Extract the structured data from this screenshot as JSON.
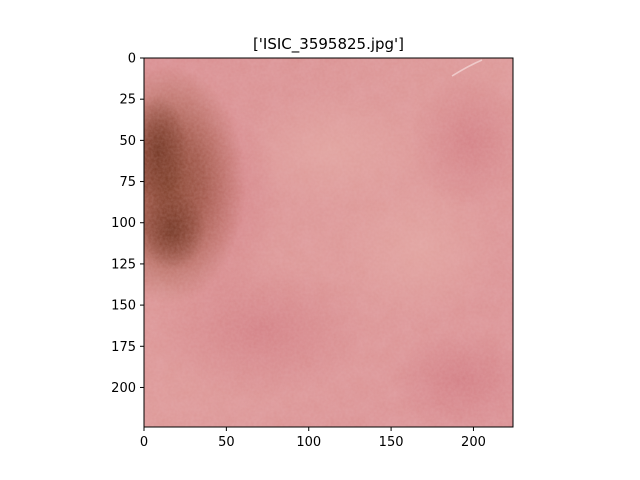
{
  "figure": {
    "title": "['ISIC_3595825.jpg']"
  },
  "image": {
    "subject": "dermoscopic skin image",
    "colors": {
      "base_skin": "#d98f91",
      "light_skin": "#e2a2a2",
      "red_mottle": "#cc6f78",
      "lesion_dark": "#7a3a22",
      "lesion_mid": "#9a5034",
      "highlight": "#f2d4d4"
    }
  },
  "axes": {
    "x": {
      "min": 0,
      "max": 224,
      "ticks": [
        0,
        50,
        100,
        150,
        200
      ],
      "tick_labels": [
        "0",
        "50",
        "100",
        "150",
        "200"
      ]
    },
    "y": {
      "min": 0,
      "max": 224,
      "inverted": true,
      "ticks": [
        0,
        25,
        50,
        75,
        100,
        125,
        150,
        175,
        200
      ],
      "tick_labels": [
        "0",
        "25",
        "50",
        "75",
        "100",
        "125",
        "150",
        "175",
        "200"
      ]
    },
    "grid": false
  }
}
